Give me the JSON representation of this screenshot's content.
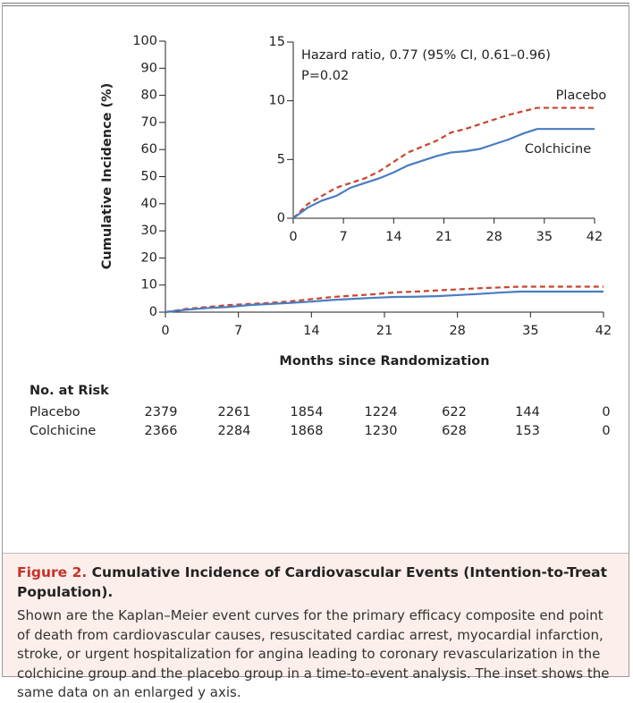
{
  "chart_data": {
    "type": "line",
    "y_label": "Cumulative Incidence (%)",
    "x_label": "Months since Randomization",
    "x": [
      0,
      2,
      4,
      6,
      8,
      10,
      12,
      14,
      16,
      18,
      20,
      22,
      24,
      26,
      28,
      30,
      32,
      34,
      36,
      38,
      40,
      42
    ],
    "series": [
      {
        "name": "Placebo",
        "color": "#c8452c",
        "dashed": true,
        "values": [
          0,
          1.2,
          1.9,
          2.6,
          3.0,
          3.4,
          4.0,
          4.8,
          5.6,
          6.1,
          6.6,
          7.3,
          7.6,
          8.0,
          8.4,
          8.8,
          9.1,
          9.4,
          9.4,
          9.4,
          9.4,
          9.4
        ]
      },
      {
        "name": "Colchicine",
        "color": "#4a7cc0",
        "dashed": false,
        "values": [
          0,
          0.9,
          1.5,
          1.9,
          2.6,
          3.0,
          3.4,
          3.9,
          4.5,
          4.9,
          5.3,
          5.6,
          5.7,
          5.9,
          6.3,
          6.7,
          7.2,
          7.6,
          7.6,
          7.6,
          7.6,
          7.6
        ]
      }
    ],
    "xlim": [
      0,
      42
    ],
    "xticks": [
      0,
      7,
      14,
      21,
      28,
      35,
      42
    ],
    "ylim": [
      0,
      100
    ],
    "yticks": [
      0,
      10,
      20,
      30,
      40,
      50,
      60,
      70,
      80,
      90,
      100
    ],
    "inset": {
      "xlim": [
        0,
        42
      ],
      "xticks": [
        0,
        7,
        14,
        21,
        28,
        35,
        42
      ],
      "ylim": [
        0,
        15
      ],
      "yticks": [
        0,
        5,
        10,
        15
      ],
      "annotations": [
        "Hazard ratio, 0.77 (95% CI, 0.61–0.96)",
        "P=0.02"
      ]
    }
  },
  "risk_table": {
    "title": "No. at Risk",
    "rows": [
      {
        "label": "Placebo",
        "values": [
          "2379",
          "2261",
          "1854",
          "1224",
          "622",
          "144",
          "0"
        ]
      },
      {
        "label": "Colchicine",
        "values": [
          "2366",
          "2284",
          "1868",
          "1230",
          "628",
          "153",
          "0"
        ]
      }
    ]
  },
  "caption": {
    "label": "Figure 2.",
    "title": "Cumulative Incidence of Cardiovascular Events (Intention-to-Treat Population).",
    "body": "Shown are the Kaplan–Meier event curves for the primary efficacy composite end point of death from cardiovascular causes, resuscitated cardiac arrest, myocardial infarction, stroke, or urgent hospitalization for angina leading to coronary revascularization in the colchicine group and the placebo group in a time-to-event analysis. The inset shows the same data on an enlarged y axis."
  }
}
